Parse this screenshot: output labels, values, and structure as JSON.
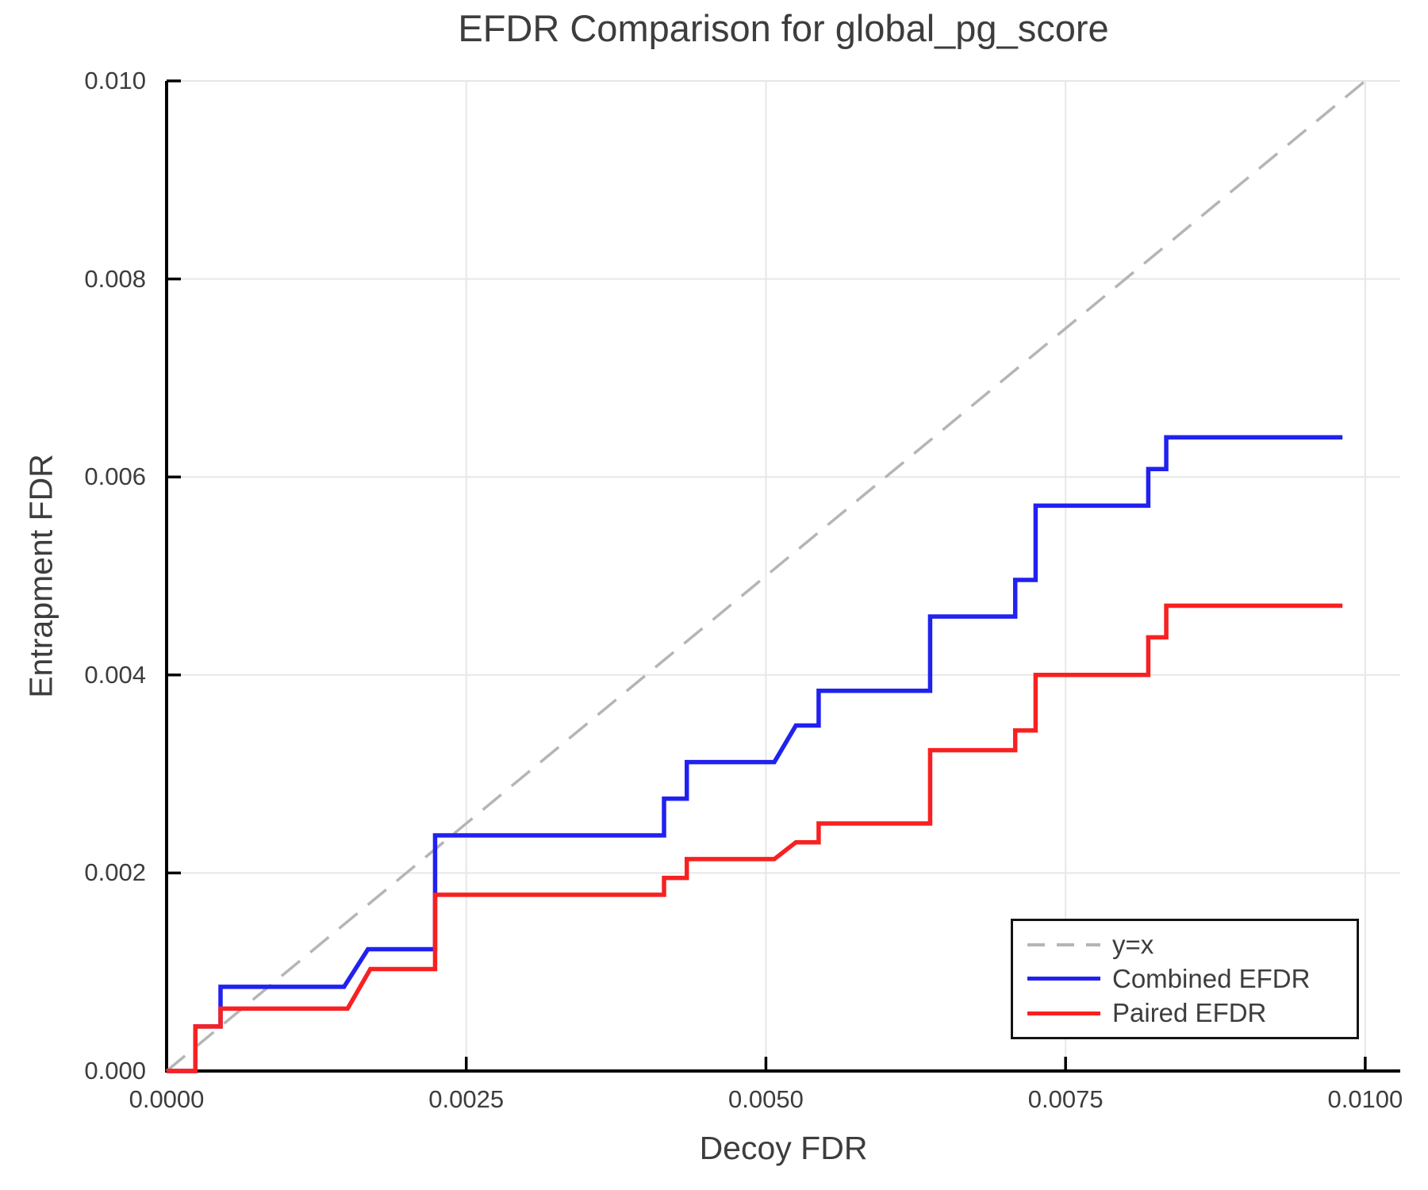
{
  "chart": {
    "title": "EFDR Comparison for global_pg_score",
    "xlabel": "Decoy FDR",
    "ylabel": "Entrapment FDR"
  },
  "legend": {
    "position": "lower right",
    "items": [
      {
        "label": "y=x",
        "style": "dashed",
        "color": "#b5b5b5"
      },
      {
        "label": "Combined EFDR",
        "style": "solid",
        "color": "#2121f0"
      },
      {
        "label": "Paired EFDR",
        "style": "solid",
        "color": "#f82121"
      }
    ]
  },
  "colors": {
    "spine": "#000000",
    "grid": "#e7e7e7",
    "text": "#3d3d3d",
    "background": "#ffffff"
  },
  "chart_data": {
    "type": "line",
    "title": "EFDR Comparison for global_pg_score",
    "xlabel": "Decoy FDR",
    "ylabel": "Entrapment FDR",
    "xlim": [
      0,
      0.010292
    ],
    "ylim": [
      0,
      0.01
    ],
    "x_ticks": [
      0,
      0.0025,
      0.005,
      0.0075,
      0.01
    ],
    "x_tick_labels": [
      "0.0000",
      "0.0025",
      "0.0050",
      "0.0075",
      "0.0100"
    ],
    "y_ticks": [
      0,
      0.002,
      0.004,
      0.006,
      0.008,
      0.01
    ],
    "y_tick_labels": [
      "0.000",
      "0.002",
      "0.004",
      "0.006",
      "0.008",
      "0.010"
    ],
    "grid": true,
    "legend_position": "lower right",
    "series": [
      {
        "name": "y=x",
        "color": "#b5b5b5",
        "style": "dashed",
        "width": 3.5,
        "points": [
          [
            0,
            0
          ],
          [
            0.01,
            0.01
          ]
        ]
      },
      {
        "name": "Combined EFDR",
        "color": "#2121f0",
        "style": "solid",
        "width": 5.5,
        "points": [
          [
            0.0,
            0.0
          ],
          [
            0.00024,
            0.0
          ],
          [
            0.00024,
            0.00045
          ],
          [
            0.00045,
            0.00045
          ],
          [
            0.00045,
            0.00085
          ],
          [
            0.00148,
            0.00085
          ],
          [
            0.00168,
            0.00123
          ],
          [
            0.00224,
            0.00123
          ],
          [
            0.00224,
            0.00238
          ],
          [
            0.00415,
            0.00238
          ],
          [
            0.00415,
            0.00275
          ],
          [
            0.00434,
            0.00275
          ],
          [
            0.00434,
            0.00312
          ],
          [
            0.00507,
            0.00312
          ],
          [
            0.00525,
            0.00349
          ],
          [
            0.00544,
            0.00349
          ],
          [
            0.00544,
            0.00384
          ],
          [
            0.00637,
            0.00384
          ],
          [
            0.00637,
            0.00459
          ],
          [
            0.00708,
            0.00459
          ],
          [
            0.00708,
            0.00496
          ],
          [
            0.00725,
            0.00496
          ],
          [
            0.00725,
            0.00571
          ],
          [
            0.00819,
            0.00571
          ],
          [
            0.00819,
            0.00608
          ],
          [
            0.00834,
            0.00608
          ],
          [
            0.00834,
            0.0064
          ],
          [
            0.00981,
            0.0064
          ]
        ]
      },
      {
        "name": "Paired EFDR",
        "color": "#f82121",
        "style": "solid",
        "width": 5.5,
        "points": [
          [
            0.0,
            0.0
          ],
          [
            0.00024,
            0.0
          ],
          [
            0.00024,
            0.00045
          ],
          [
            0.00045,
            0.00045
          ],
          [
            0.00045,
            0.00063
          ],
          [
            0.00151,
            0.00063
          ],
          [
            0.0017,
            0.00103
          ],
          [
            0.00224,
            0.00103
          ],
          [
            0.00224,
            0.00178
          ],
          [
            0.00415,
            0.00178
          ],
          [
            0.00415,
            0.00195
          ],
          [
            0.00434,
            0.00195
          ],
          [
            0.00434,
            0.00214
          ],
          [
            0.00507,
            0.00214
          ],
          [
            0.00525,
            0.00231
          ],
          [
            0.00544,
            0.00231
          ],
          [
            0.00544,
            0.0025
          ],
          [
            0.00637,
            0.0025
          ],
          [
            0.00637,
            0.00324
          ],
          [
            0.00708,
            0.00324
          ],
          [
            0.00708,
            0.00344
          ],
          [
            0.00725,
            0.00344
          ],
          [
            0.00725,
            0.004
          ],
          [
            0.00819,
            0.004
          ],
          [
            0.00819,
            0.00438
          ],
          [
            0.00834,
            0.00438
          ],
          [
            0.00834,
            0.0047
          ],
          [
            0.00981,
            0.0047
          ]
        ]
      }
    ]
  }
}
